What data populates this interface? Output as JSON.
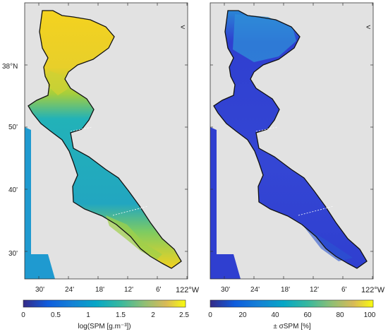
{
  "figure": {
    "panels": [
      {
        "id": "spm",
        "lat_labels": [
          "38°N",
          "50'",
          "40'",
          "30'"
        ],
        "lon_labels": [
          "30'",
          "24'",
          "18'",
          "12'",
          "6'"
        ],
        "corner_lon_label": "122°W",
        "colorbar": {
          "ticks": [
            "0",
            "0.5",
            "1",
            "1.5",
            "2",
            "2.5"
          ],
          "label": "log(SPM [g.m⁻³])",
          "range": [
            0,
            2.5
          ]
        }
      },
      {
        "id": "sigma",
        "lat_labels": [],
        "lon_labels": [
          "30'",
          "24'",
          "18'",
          "12'",
          "6'"
        ],
        "corner_lon_label": "122°W",
        "colorbar": {
          "ticks": [
            "0",
            "20",
            "40",
            "60",
            "80",
            "100"
          ],
          "label": "± σSPM [%]",
          "range": [
            0,
            100
          ]
        }
      }
    ],
    "colors": {
      "land": "#e2e2e2",
      "coast": "#111111",
      "spm_high": "#f4d21f",
      "spm_mid": "#22b2b8",
      "sigma_low": "#2f3fd0",
      "sigma_mid": "#2a86d6"
    }
  }
}
